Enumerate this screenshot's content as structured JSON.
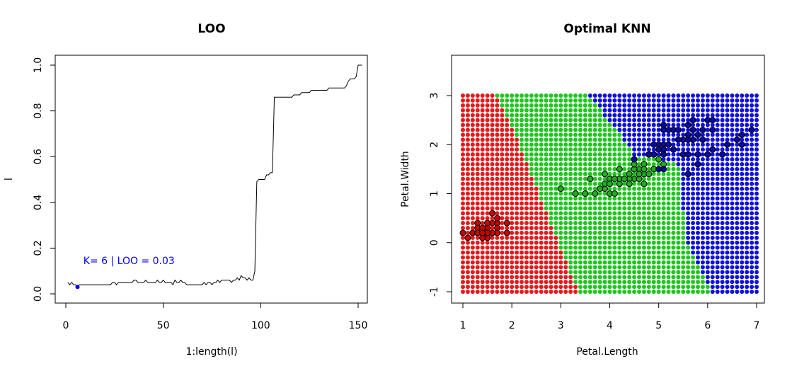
{
  "chart_data": [
    {
      "type": "line",
      "title": "LOO",
      "xlabel": "1:length(l)",
      "ylabel": "l",
      "xlim": [
        0,
        150
      ],
      "ylim": [
        0,
        1
      ],
      "x_ticks": [
        "0",
        "50",
        "100",
        "150"
      ],
      "y_ticks": [
        "0.0",
        "0.2",
        "0.4",
        "0.6",
        "0.8",
        "1.0"
      ],
      "grid": false,
      "series": [
        {
          "values": [
            0.05,
            0.04,
            0.05,
            0.04,
            0.04,
            0.03,
            0.04,
            0.04,
            0.04,
            0.04,
            0.04,
            0.04,
            0.04,
            0.04,
            0.04,
            0.04,
            0.04,
            0.04,
            0.04,
            0.04,
            0.04,
            0.04,
            0.04,
            0.05,
            0.05,
            0.04,
            0.05,
            0.05,
            0.05,
            0.05,
            0.05,
            0.05,
            0.05,
            0.05,
            0.06,
            0.06,
            0.05,
            0.05,
            0.05,
            0.05,
            0.06,
            0.05,
            0.05,
            0.05,
            0.05,
            0.05,
            0.06,
            0.05,
            0.05,
            0.06,
            0.05,
            0.05,
            0.05,
            0.05,
            0.04,
            0.06,
            0.05,
            0.05,
            0.06,
            0.05,
            0.05,
            0.04,
            0.04,
            0.04,
            0.04,
            0.04,
            0.04,
            0.04,
            0.04,
            0.04,
            0.05,
            0.04,
            0.05,
            0.05,
            0.04,
            0.05,
            0.05,
            0.06,
            0.05,
            0.06,
            0.06,
            0.06,
            0.06,
            0.06,
            0.05,
            0.06,
            0.06,
            0.07,
            0.06,
            0.08,
            0.07,
            0.07,
            0.06,
            0.07,
            0.06,
            0.06,
            0.1,
            0.49,
            0.5,
            0.5,
            0.5,
            0.5,
            0.52,
            0.52,
            0.53,
            0.53,
            0.86,
            0.86,
            0.86,
            0.86,
            0.86,
            0.86,
            0.86,
            0.86,
            0.86,
            0.86,
            0.87,
            0.87,
            0.87,
            0.87,
            0.88,
            0.88,
            0.88,
            0.88,
            0.88,
            0.89,
            0.89,
            0.89,
            0.89,
            0.89,
            0.89,
            0.89,
            0.89,
            0.89,
            0.9,
            0.9,
            0.9,
            0.9,
            0.9,
            0.9,
            0.9,
            0.9,
            0.9,
            0.91,
            0.93,
            0.94,
            0.94,
            0.94,
            0.95,
            1.0,
            1.0,
            1.0
          ]
        }
      ],
      "highlight": {
        "x": 6,
        "y": 0.03,
        "color": "#0000ff"
      },
      "annotation": {
        "text": "K= 6  | LOO =  0.03",
        "x": 9,
        "y": 0.13,
        "color": "#0000ff"
      }
    },
    {
      "type": "scatter",
      "title": "Optimal KNN",
      "xlabel": "Petal.Length",
      "ylabel": "Petal.Width",
      "xlim": [
        1,
        7
      ],
      "ylim": [
        -1,
        3
      ],
      "x_ticks": [
        "1",
        "2",
        "3",
        "4",
        "5",
        "6",
        "7"
      ],
      "y_ticks": [
        "-1",
        "0",
        "1",
        "2",
        "3"
      ],
      "grid": false,
      "class_colors": [
        "#e41a1c",
        "#1fc61f",
        "#1111dd"
      ],
      "class_fill_colors": [
        "#cc0000",
        "#22aa22",
        "#0a0a99"
      ],
      "decision_grid": {
        "x_step": 0.1,
        "y_step": 0.1,
        "boundary_1_2": [
          {
            "y": -1,
            "x": 3.35
          },
          {
            "y": 0,
            "x": 2.95
          },
          {
            "y": 1,
            "x": 2.55
          },
          {
            "y": 2,
            "x": 2.15
          },
          {
            "y": 2.85,
            "x": 1.75
          },
          {
            "y": 3,
            "x": 1.65
          }
        ],
        "boundary_2_3": [
          {
            "y": -1,
            "x": 6.05
          },
          {
            "y": 0,
            "x": 5.6
          },
          {
            "y": 1,
            "x": 5.45
          },
          {
            "y": 1.6,
            "x": 5.4
          },
          {
            "y": 1.8,
            "x": 4.5
          },
          {
            "y": 2.3,
            "x": 4.15
          },
          {
            "y": 3,
            "x": 3.55
          }
        ]
      },
      "points": [
        [
          1.4,
          0.2,
          1
        ],
        [
          1.4,
          0.2,
          1
        ],
        [
          1.3,
          0.2,
          1
        ],
        [
          1.5,
          0.2,
          1
        ],
        [
          1.4,
          0.2,
          1
        ],
        [
          1.7,
          0.4,
          1
        ],
        [
          1.4,
          0.3,
          1
        ],
        [
          1.5,
          0.2,
          1
        ],
        [
          1.4,
          0.2,
          1
        ],
        [
          1.5,
          0.1,
          1
        ],
        [
          1.5,
          0.2,
          1
        ],
        [
          1.6,
          0.2,
          1
        ],
        [
          1.4,
          0.1,
          1
        ],
        [
          1.1,
          0.1,
          1
        ],
        [
          1.2,
          0.2,
          1
        ],
        [
          1.5,
          0.4,
          1
        ],
        [
          1.3,
          0.4,
          1
        ],
        [
          1.4,
          0.3,
          1
        ],
        [
          1.7,
          0.3,
          1
        ],
        [
          1.5,
          0.3,
          1
        ],
        [
          1.7,
          0.2,
          1
        ],
        [
          1.5,
          0.4,
          1
        ],
        [
          1.0,
          0.2,
          1
        ],
        [
          1.7,
          0.5,
          1
        ],
        [
          1.9,
          0.2,
          1
        ],
        [
          1.6,
          0.2,
          1
        ],
        [
          1.6,
          0.4,
          1
        ],
        [
          1.5,
          0.2,
          1
        ],
        [
          1.4,
          0.2,
          1
        ],
        [
          1.6,
          0.2,
          1
        ],
        [
          1.6,
          0.2,
          1
        ],
        [
          1.5,
          0.4,
          1
        ],
        [
          1.5,
          0.1,
          1
        ],
        [
          1.4,
          0.2,
          1
        ],
        [
          1.5,
          0.2,
          1
        ],
        [
          1.2,
          0.2,
          1
        ],
        [
          1.3,
          0.2,
          1
        ],
        [
          1.4,
          0.1,
          1
        ],
        [
          1.3,
          0.2,
          1
        ],
        [
          1.5,
          0.2,
          1
        ],
        [
          1.3,
          0.3,
          1
        ],
        [
          1.3,
          0.3,
          1
        ],
        [
          1.3,
          0.2,
          1
        ],
        [
          1.6,
          0.6,
          1
        ],
        [
          1.9,
          0.4,
          1
        ],
        [
          1.4,
          0.3,
          1
        ],
        [
          1.6,
          0.2,
          1
        ],
        [
          1.4,
          0.2,
          1
        ],
        [
          1.5,
          0.2,
          1
        ],
        [
          1.4,
          0.2,
          1
        ],
        [
          4.7,
          1.4,
          2
        ],
        [
          4.5,
          1.5,
          2
        ],
        [
          4.9,
          1.5,
          2
        ],
        [
          4.0,
          1.3,
          2
        ],
        [
          4.6,
          1.5,
          2
        ],
        [
          4.5,
          1.3,
          2
        ],
        [
          4.7,
          1.6,
          2
        ],
        [
          3.3,
          1.0,
          2
        ],
        [
          4.6,
          1.3,
          2
        ],
        [
          3.9,
          1.4,
          2
        ],
        [
          3.5,
          1.0,
          2
        ],
        [
          4.2,
          1.5,
          2
        ],
        [
          4.0,
          1.0,
          2
        ],
        [
          4.7,
          1.4,
          2
        ],
        [
          3.6,
          1.3,
          2
        ],
        [
          4.4,
          1.4,
          2
        ],
        [
          4.5,
          1.5,
          2
        ],
        [
          4.1,
          1.0,
          2
        ],
        [
          4.5,
          1.5,
          2
        ],
        [
          3.9,
          1.1,
          2
        ],
        [
          4.8,
          1.8,
          2
        ],
        [
          4.0,
          1.3,
          2
        ],
        [
          4.9,
          1.5,
          2
        ],
        [
          4.7,
          1.2,
          2
        ],
        [
          4.3,
          1.3,
          2
        ],
        [
          4.4,
          1.4,
          2
        ],
        [
          4.8,
          1.4,
          2
        ],
        [
          5.0,
          1.7,
          2
        ],
        [
          4.5,
          1.5,
          2
        ],
        [
          3.5,
          1.0,
          2
        ],
        [
          3.8,
          1.1,
          2
        ],
        [
          3.7,
          1.0,
          2
        ],
        [
          3.9,
          1.2,
          2
        ],
        [
          5.1,
          1.6,
          2
        ],
        [
          4.5,
          1.5,
          2
        ],
        [
          4.5,
          1.6,
          2
        ],
        [
          4.7,
          1.5,
          2
        ],
        [
          4.4,
          1.3,
          2
        ],
        [
          4.1,
          1.3,
          2
        ],
        [
          4.0,
          1.3,
          2
        ],
        [
          4.4,
          1.2,
          2
        ],
        [
          4.6,
          1.4,
          2
        ],
        [
          4.0,
          1.2,
          2
        ],
        [
          3.3,
          1.0,
          2
        ],
        [
          4.2,
          1.3,
          2
        ],
        [
          4.2,
          1.2,
          2
        ],
        [
          4.2,
          1.3,
          2
        ],
        [
          4.3,
          1.3,
          2
        ],
        [
          3.0,
          1.1,
          2
        ],
        [
          4.1,
          1.3,
          2
        ],
        [
          6.0,
          2.5,
          3
        ],
        [
          5.1,
          1.9,
          3
        ],
        [
          5.9,
          2.1,
          3
        ],
        [
          5.6,
          1.8,
          3
        ],
        [
          5.8,
          2.2,
          3
        ],
        [
          6.6,
          2.1,
          3
        ],
        [
          4.5,
          1.7,
          3
        ],
        [
          6.3,
          1.8,
          3
        ],
        [
          5.8,
          1.8,
          3
        ],
        [
          6.1,
          2.5,
          3
        ],
        [
          5.1,
          2.0,
          3
        ],
        [
          5.3,
          1.9,
          3
        ],
        [
          5.5,
          2.1,
          3
        ],
        [
          5.0,
          2.0,
          3
        ],
        [
          5.1,
          2.4,
          3
        ],
        [
          5.3,
          2.3,
          3
        ],
        [
          5.5,
          1.8,
          3
        ],
        [
          6.7,
          2.2,
          3
        ],
        [
          6.9,
          2.3,
          3
        ],
        [
          5.0,
          1.5,
          3
        ],
        [
          5.7,
          2.3,
          3
        ],
        [
          4.9,
          2.0,
          3
        ],
        [
          6.7,
          2.0,
          3
        ],
        [
          4.9,
          1.8,
          3
        ],
        [
          5.7,
          2.1,
          3
        ],
        [
          6.0,
          1.8,
          3
        ],
        [
          4.8,
          1.8,
          3
        ],
        [
          4.9,
          1.8,
          3
        ],
        [
          5.6,
          2.1,
          3
        ],
        [
          5.8,
          1.6,
          3
        ],
        [
          6.1,
          1.9,
          3
        ],
        [
          6.4,
          2.0,
          3
        ],
        [
          5.6,
          2.2,
          3
        ],
        [
          5.1,
          1.5,
          3
        ],
        [
          5.6,
          1.4,
          3
        ],
        [
          6.1,
          2.3,
          3
        ],
        [
          5.6,
          2.4,
          3
        ],
        [
          5.5,
          1.8,
          3
        ],
        [
          4.8,
          1.8,
          3
        ],
        [
          5.4,
          2.1,
          3
        ],
        [
          5.6,
          2.4,
          3
        ],
        [
          5.1,
          2.3,
          3
        ],
        [
          5.1,
          1.9,
          3
        ],
        [
          5.9,
          2.3,
          3
        ],
        [
          5.7,
          2.5,
          3
        ],
        [
          5.2,
          2.3,
          3
        ],
        [
          5.0,
          1.9,
          3
        ],
        [
          5.2,
          2.0,
          3
        ],
        [
          5.4,
          2.3,
          3
        ],
        [
          5.1,
          1.8,
          3
        ]
      ]
    }
  ]
}
